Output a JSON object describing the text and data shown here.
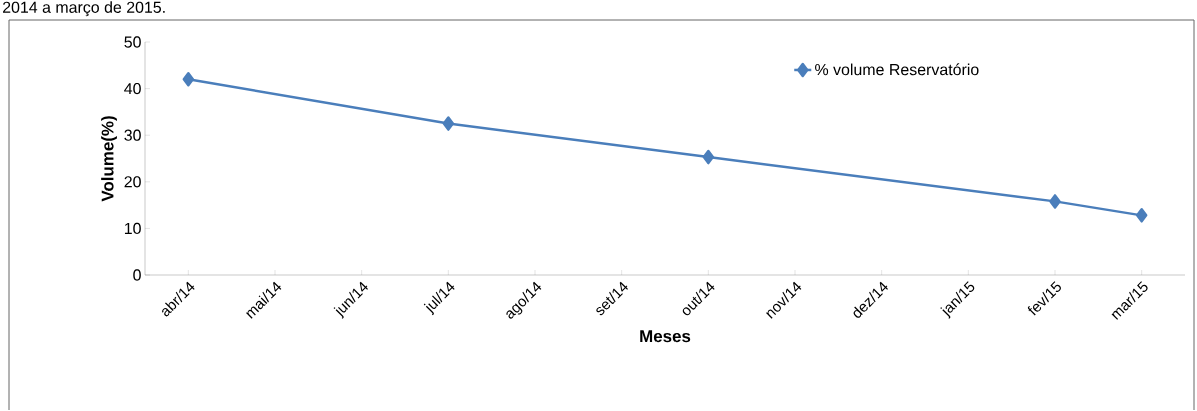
{
  "chart_data": {
    "type": "line",
    "xlabel": "Meses",
    "ylabel": "Volume(%)",
    "annotations": [
      "2014 a março de 2015."
    ],
    "categories": [
      "abr/14",
      "mai/14",
      "jun/14",
      "jul/14",
      "ago/14",
      "set/14",
      "out/14",
      "nov/14",
      "dez/14",
      "jan/15",
      "fev/15",
      "mar/15"
    ],
    "series": [
      {
        "name": "% volume Reservatório",
        "color": "#4a7ebb",
        "values": [
          42,
          null,
          null,
          32.5,
          null,
          null,
          25.3,
          null,
          null,
          null,
          15.8,
          12.8
        ]
      }
    ],
    "ylim": [
      0,
      50
    ],
    "yticks": [
      0,
      10,
      20,
      30,
      40,
      50
    ],
    "grid": false,
    "legend": "top right",
    "marker": "diamond",
    "line_style": "solid"
  }
}
